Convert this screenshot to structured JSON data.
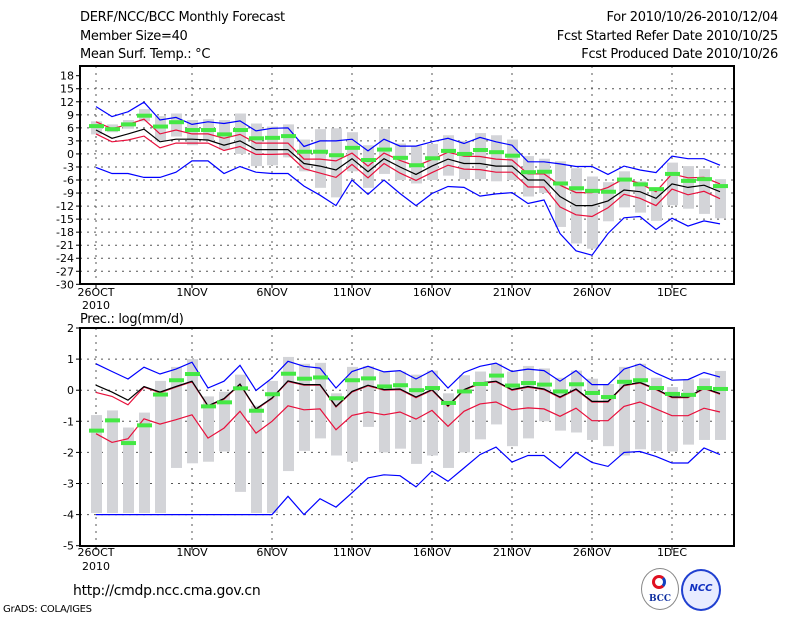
{
  "header": {
    "title": "DERF/NCC/BCC Monthly Forecast",
    "member_size": "Member Size=40",
    "variable": "Mean Surf. Temp.: °C",
    "forecast_period": "For 2010/10/26-2010/12/04",
    "fcst_started": "Fcst Started Refer Date 2010/10/25",
    "fcst_produced": "Fcst Produced Date 2010/10/26"
  },
  "footer": {
    "url": "http://cmdp.ncc.cma.gov.cn",
    "grads": "GrADS: COLA/IGES",
    "logo_bcc": "BCC",
    "logo_ncc": "NCC"
  },
  "colors": {
    "mean": "#000000",
    "spread": "#e8103c",
    "extreme": "#0000ff",
    "box": "#d3d4d8",
    "marker": "#44e844"
  },
  "chart_data": [
    {
      "type": "line",
      "title": "Mean Surf. Temp.: °C",
      "ylabel": "°C",
      "ylim": [
        -30,
        18
      ],
      "yticks": [
        18,
        15,
        12,
        9,
        6,
        3,
        0,
        -3,
        -6,
        -9,
        -12,
        -15,
        -18,
        -21,
        -24,
        -27,
        -30
      ],
      "xtick_days": [
        0,
        6,
        11,
        16,
        21,
        26,
        31,
        36
      ],
      "xtick_labels": [
        "26OCT",
        "1NOV",
        "6NOV",
        "11NOV",
        "16NOV",
        "21NOV",
        "26NOV",
        "1DEC"
      ],
      "xtick_year": "2010",
      "grid": true,
      "days": 40,
      "series": [
        {
          "name": "max",
          "color": "#0000ff",
          "values": [
            10.9,
            8.6,
            9.7,
            11.9,
            7.8,
            8.4,
            6.8,
            7.4,
            7,
            7.6,
            5.3,
            5.9,
            6,
            1.7,
            3,
            3,
            3.4,
            0.7,
            3.4,
            1.8,
            1.8,
            2.8,
            3.6,
            2.4,
            3.8,
            2.8,
            2,
            -1.8,
            -1.8,
            -2.3,
            -2.9,
            -2.9,
            -4.7,
            -2.8,
            -3.7,
            -4.3,
            -0.5,
            -1.1,
            -1.1,
            -2.6
          ]
        },
        {
          "name": "upper",
          "color": "#e8103c",
          "values": [
            7.4,
            5.8,
            6.8,
            8,
            4.6,
            5.5,
            4.6,
            4.6,
            3.6,
            4.5,
            2.5,
            2.5,
            2.5,
            -1.2,
            -1.2,
            -1.6,
            0.2,
            -2.8,
            0.2,
            -1.5,
            -2.8,
            -1.3,
            0.4,
            -0.5,
            -0.6,
            -1.2,
            -1.4,
            -4.6,
            -4.6,
            -7.2,
            -8.9,
            -8.9,
            -7.7,
            -5.7,
            -6.8,
            -8.7,
            -4.6,
            -5.5,
            -5.4,
            -6.9
          ]
        },
        {
          "name": "mean",
          "color": "#000000",
          "values": [
            5.5,
            3.6,
            4.6,
            5.7,
            2.8,
            3.4,
            3.4,
            3.2,
            2,
            3,
            1,
            1,
            1,
            -2.2,
            -2.8,
            -3.7,
            -1.1,
            -4.1,
            -1.1,
            -3,
            -4.7,
            -2.8,
            -1.2,
            -2.2,
            -2.2,
            -2.8,
            -2.8,
            -6,
            -6,
            -9.8,
            -11.9,
            -11.9,
            -10.8,
            -8.3,
            -8.7,
            -10.2,
            -6.9,
            -7.7,
            -7.2,
            -8.7
          ]
        },
        {
          "name": "lower",
          "color": "#e8103c",
          "values": [
            4.6,
            2.8,
            3.2,
            4.1,
            1.4,
            2.5,
            2.5,
            2.5,
            0.8,
            1.7,
            -0.1,
            -0.1,
            0,
            -3.4,
            -4.4,
            -5.4,
            -2.4,
            -5.5,
            -2.2,
            -4.4,
            -6.1,
            -4.3,
            -2.6,
            -3.5,
            -3.6,
            -4.2,
            -4.2,
            -7.6,
            -7.6,
            -12.2,
            -14,
            -14.4,
            -12.4,
            -9.3,
            -10.2,
            -11.9,
            -8.1,
            -9.4,
            -8.6,
            -10.3
          ]
        },
        {
          "name": "min",
          "color": "#0000ff",
          "values": [
            -3.1,
            -4.5,
            -4.5,
            -5.4,
            -5.4,
            -4.2,
            -1.6,
            -1.6,
            -4.5,
            -2.9,
            -4.2,
            -4.5,
            -4.5,
            -7.4,
            -9.5,
            -11.9,
            -6,
            -9.3,
            -6,
            -9.1,
            -11.9,
            -9.1,
            -7.5,
            -7.7,
            -9.7,
            -9.2,
            -8.9,
            -11.4,
            -10.6,
            -18.3,
            -22.3,
            -23.3,
            -18.3,
            -14.7,
            -14.4,
            -17.4,
            -14.8,
            -16.6,
            -15.4,
            -16.1
          ]
        }
      ],
      "markers": [
        6.4,
        5.7,
        6.8,
        8.8,
        6.3,
        7.3,
        5.5,
        5.5,
        4.5,
        5.5,
        3.6,
        3.7,
        4.1,
        0.5,
        0.5,
        -0.3,
        1.4,
        -1.4,
        1,
        -0.9,
        -2.6,
        -1,
        0.7,
        0,
        0.9,
        0.4,
        -0.4,
        -4.2,
        -4.1,
        -6.8,
        -7.9,
        -8.5,
        -8.7,
        -5.9,
        -7,
        -8.1,
        -4.6,
        -6.2,
        -5.8,
        -7.4
      ],
      "boxes": [
        [
          4.5,
          7.5
        ],
        [
          5,
          6.8
        ],
        [
          5.8,
          7.8
        ],
        [
          7.5,
          10.3
        ],
        [
          3,
          8.7
        ],
        [
          4,
          9.3
        ],
        [
          2,
          7.8
        ],
        [
          3,
          8
        ],
        [
          1,
          7.8
        ],
        [
          0,
          9.3
        ],
        [
          -2.8,
          7
        ],
        [
          -2.6,
          6.3
        ],
        [
          -0.8,
          6.8
        ],
        [
          -4,
          3.3
        ],
        [
          -7.8,
          5.7
        ],
        [
          -10,
          5.9
        ],
        [
          -4,
          5
        ],
        [
          -7.8,
          2
        ],
        [
          -4.6,
          5.7
        ],
        [
          -6,
          2.4
        ],
        [
          -6.8,
          1.8
        ],
        [
          -6,
          2.3
        ],
        [
          -5,
          4.3
        ],
        [
          -5.8,
          3
        ],
        [
          -5.8,
          4.8
        ],
        [
          -6.3,
          4.3
        ],
        [
          -6,
          3.3
        ],
        [
          -9.8,
          -0.5
        ],
        [
          -9,
          -1.1
        ],
        [
          -16.8,
          -1.7
        ],
        [
          -20.6,
          -3.3
        ],
        [
          -21.8,
          -5.2
        ],
        [
          -15.5,
          -6.5
        ],
        [
          -12.3,
          -4
        ],
        [
          -13.5,
          -6.3
        ],
        [
          -15.4,
          -8.3
        ],
        [
          -11.8,
          -2
        ],
        [
          -12.6,
          -2.8
        ],
        [
          -13.8,
          -3.5
        ],
        [
          -14.8,
          -5.8
        ]
      ]
    },
    {
      "type": "line",
      "title": "Prec.: log(mm/d)",
      "ylabel": "log(mm/d)",
      "ylim": [
        -5,
        2
      ],
      "yticks": [
        2,
        1,
        0,
        -1,
        -2,
        -3,
        -4,
        -5
      ],
      "xtick_days": [
        0,
        6,
        11,
        16,
        21,
        26,
        31,
        36
      ],
      "xtick_labels": [
        "26OCT",
        "1NOV",
        "6NOV",
        "11NOV",
        "16NOV",
        "21NOV",
        "26NOV",
        "1DEC"
      ],
      "xtick_year": "2010",
      "grid": true,
      "days": 40,
      "series": [
        {
          "name": "max",
          "color": "#0000ff",
          "values": [
            0.85,
            0.6,
            0.36,
            0.74,
            0.52,
            0.68,
            0.9,
            0.07,
            0.29,
            0.8,
            -0.01,
            0.39,
            0.93,
            0.77,
            0.71,
            0.07,
            0.6,
            0.77,
            0.59,
            0.63,
            0.36,
            0.63,
            0.07,
            0.57,
            0.77,
            0.87,
            0.6,
            0.68,
            0.63,
            0.29,
            0.63,
            0.18,
            0.18,
            0.68,
            0.84,
            0.55,
            0.32,
            0.34,
            0.57,
            0.42
          ]
        },
        {
          "name": "upper",
          "color": "#e8103c",
          "values": [
            -0.07,
            -0.2,
            -0.47,
            0.1,
            -0.08,
            0.1,
            0.27,
            -0.52,
            -0.29,
            0.18,
            -0.62,
            -0.27,
            0.28,
            0.16,
            0.16,
            -0.54,
            -0.06,
            0.14,
            0,
            0.02,
            -0.24,
            0,
            -0.52,
            0,
            0.21,
            0.27,
            0,
            0.1,
            0.02,
            -0.24,
            0.02,
            -0.38,
            -0.38,
            0.14,
            0.23,
            0.02,
            -0.24,
            -0.24,
            0.05,
            -0.13
          ]
        },
        {
          "name": "mean",
          "color": "#000000",
          "values": [
            0.16,
            -0.06,
            -0.32,
            0.12,
            -0.06,
            0.12,
            0.29,
            -0.5,
            -0.27,
            0.2,
            -0.6,
            -0.25,
            0.3,
            0.18,
            0.18,
            -0.52,
            -0.04,
            0.16,
            0.02,
            0.04,
            -0.22,
            0.02,
            -0.5,
            0.02,
            0.23,
            0.29,
            0.02,
            0.12,
            0.04,
            -0.22,
            0.04,
            -0.36,
            -0.36,
            0.16,
            0.25,
            0.04,
            -0.22,
            -0.22,
            0.07,
            -0.11
          ]
        },
        {
          "name": "lower",
          "color": "#e8103c",
          "values": [
            -1.4,
            -1.68,
            -1.56,
            -0.92,
            -1.09,
            -0.95,
            -0.79,
            -1.54,
            -1.22,
            -0.68,
            -1.38,
            -1,
            -0.5,
            -0.63,
            -0.6,
            -1.27,
            -0.81,
            -0.7,
            -0.79,
            -0.7,
            -0.93,
            -0.65,
            -1.16,
            -0.68,
            -0.44,
            -0.38,
            -0.63,
            -0.57,
            -0.6,
            -0.84,
            -0.58,
            -0.98,
            -0.98,
            -0.52,
            -0.38,
            -0.6,
            -0.82,
            -0.82,
            -0.58,
            -0.7
          ]
        },
        {
          "name": "min",
          "color": "#0000ff",
          "values": [
            -4,
            -4,
            -4,
            -4,
            -4,
            -4,
            -4,
            -4,
            -4,
            -4,
            -4,
            -4,
            -3.41,
            -4,
            -3.49,
            -3.76,
            -3.3,
            -2.82,
            -2.72,
            -2.75,
            -3.11,
            -2.6,
            -2.93,
            -2.5,
            -2.07,
            -1.83,
            -2.31,
            -2.1,
            -2.1,
            -2.5,
            -2,
            -2.32,
            -2.45,
            -2,
            -1.97,
            -2.13,
            -2.34,
            -2.34,
            -1.86,
            -2.07
          ]
        }
      ],
      "markers": [
        -1.3,
        -0.97,
        -1.7,
        -1.13,
        -0.14,
        0.32,
        0.52,
        -0.52,
        -0.39,
        0.06,
        -0.66,
        -0.13,
        0.53,
        0.37,
        0.41,
        -0.26,
        0.32,
        0.38,
        0.12,
        0.16,
        0,
        0.07,
        -0.41,
        -0.04,
        0.2,
        0.47,
        0.15,
        0.23,
        0.18,
        -0.04,
        0.19,
        -0.09,
        -0.22,
        0.27,
        0.32,
        0.07,
        -0.12,
        -0.15,
        0.07,
        0.04
      ],
      "boxes": [
        [
          -3.95,
          -0.8
        ],
        [
          -3.95,
          -0.65
        ],
        [
          -3.95,
          -1.2
        ],
        [
          -3.95,
          -0.72
        ],
        [
          -3.95,
          0.3
        ],
        [
          -2.5,
          0.75
        ],
        [
          -2.35,
          1
        ],
        [
          -2.3,
          -0.2
        ],
        [
          -1.97,
          -0.05
        ],
        [
          -3.27,
          0.5
        ],
        [
          -3.95,
          -0.5
        ],
        [
          -3.95,
          0.3
        ],
        [
          -2.6,
          1.07
        ],
        [
          -1.95,
          0.85
        ],
        [
          -1.55,
          0.88
        ],
        [
          -2.1,
          -0.1
        ],
        [
          -2.3,
          0.75
        ],
        [
          -1.18,
          0.77
        ],
        [
          -2,
          0.6
        ],
        [
          -1.88,
          0.6
        ],
        [
          -2.37,
          0.5
        ],
        [
          -2.1,
          0.63
        ],
        [
          -2.5,
          -0.1
        ],
        [
          -2,
          0.48
        ],
        [
          -1.58,
          0.6
        ],
        [
          -1.1,
          0.85
        ],
        [
          -1.8,
          0.6
        ],
        [
          -1.55,
          0.78
        ],
        [
          -1,
          0.7
        ],
        [
          -1.3,
          0.4
        ],
        [
          -1.36,
          0.63
        ],
        [
          -1.6,
          0.37
        ],
        [
          -1.8,
          0.2
        ],
        [
          -2.1,
          0.75
        ],
        [
          -1.9,
          0.85
        ],
        [
          -1.95,
          0.4
        ],
        [
          -1.97,
          0.1
        ],
        [
          -1.75,
          0.35
        ],
        [
          -1.6,
          0.38
        ],
        [
          -1.6,
          0.62
        ]
      ]
    }
  ]
}
